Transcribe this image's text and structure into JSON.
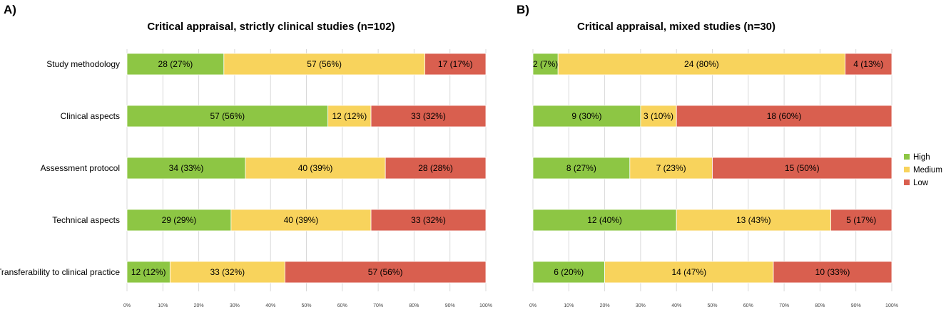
{
  "chart_data": [
    {
      "panel": "A)",
      "type": "bar",
      "orientation": "horizontal",
      "stacked": true,
      "title": "Critical appraisal, strictly clinical studies (n=102)",
      "categories": [
        "Study methodology",
        "Clinical aspects",
        "Assessment protocol",
        "Technical aspects",
        "Transferability to clinical practice"
      ],
      "series": [
        {
          "name": "High",
          "values": [
            27,
            56,
            33,
            29,
            12
          ],
          "labels": [
            "28 (27%)",
            "57 (56%)",
            "34 (33%)",
            "29 (29%)",
            "12 (12%)"
          ]
        },
        {
          "name": "Medium",
          "values": [
            56,
            12,
            39,
            39,
            32
          ],
          "labels": [
            "57 (56%)",
            "12 (12%)",
            "40 (39%)",
            "40 (39%)",
            "33 (32%)"
          ]
        },
        {
          "name": "Low",
          "values": [
            17,
            32,
            28,
            32,
            56
          ],
          "labels": [
            "17 (17%)",
            "33 (32%)",
            "28 (28%)",
            "33 (32%)",
            "57 (56%)"
          ]
        }
      ],
      "xlim": [
        0,
        100
      ],
      "xticks": [
        "0%",
        "10%",
        "20%",
        "30%",
        "40%",
        "50%",
        "60%",
        "70%",
        "80%",
        "90%",
        "100%"
      ],
      "grid": true
    },
    {
      "panel": "B)",
      "type": "bar",
      "orientation": "horizontal",
      "stacked": true,
      "title": "Critical appraisal, mixed studies (n=30)",
      "categories": [
        "Study methodology",
        "Clinical aspects",
        "Assessment protocol",
        "Technical aspects",
        "Transferability to clinical practice"
      ],
      "series": [
        {
          "name": "High",
          "values": [
            7,
            30,
            27,
            40,
            20
          ],
          "labels": [
            "2 (7%)",
            "9 (30%)",
            "8 (27%)",
            "12 (40%)",
            "6 (20%)"
          ]
        },
        {
          "name": "Medium",
          "values": [
            80,
            10,
            23,
            43,
            47
          ],
          "labels": [
            "24 (80%)",
            "3 (10%)",
            "7 (23%)",
            "13 (43%)",
            "14 (47%)"
          ]
        },
        {
          "name": "Low",
          "values": [
            13,
            60,
            50,
            17,
            33
          ],
          "labels": [
            "4 (13%)",
            "18 (60%)",
            "15 (50%)",
            "5 (17%)",
            "10 (33%)"
          ]
        }
      ],
      "xlim": [
        0,
        100
      ],
      "xticks": [
        "0%",
        "10%",
        "20%",
        "30%",
        "40%",
        "50%",
        "60%",
        "70%",
        "80%",
        "90%",
        "100%"
      ],
      "grid": true
    }
  ],
  "legend": {
    "position": "right",
    "items": [
      {
        "name": "High",
        "color": "#8DC644"
      },
      {
        "name": "Medium",
        "color": "#F8D35C"
      },
      {
        "name": "Low",
        "color": "#D95F4F"
      }
    ]
  },
  "colors": {
    "High": "#8DC644",
    "Medium": "#F8D35C",
    "Low": "#D95F4F",
    "grid": "#D9D9D9",
    "bar_border": "#ffffff"
  }
}
